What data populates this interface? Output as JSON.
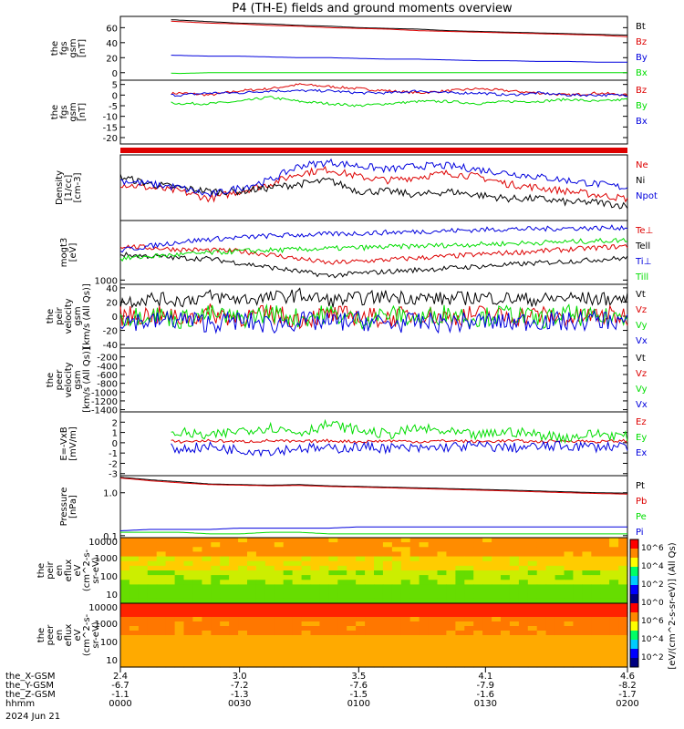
{
  "title": "P4 (TH-E) fields and ground moments overview",
  "colors": {
    "black": "#000000",
    "red": "#dd0000",
    "green": "#00dd00",
    "blue": "#0000dd",
    "axis": "#000000"
  },
  "chart_data": [
    {
      "type": "line",
      "id": "fgs",
      "ylabel": [
        "the",
        "fgs",
        "gsm",
        "[nT]"
      ],
      "ylim": [
        -10,
        75
      ],
      "yticks": [
        "60",
        "40",
        "20",
        "0"
      ],
      "series": [
        {
          "name": "Bt",
          "color": "black",
          "values": [
            74,
            72,
            70,
            68,
            66,
            65,
            63,
            62,
            60,
            59,
            58,
            56,
            55,
            54,
            53,
            52,
            51,
            50
          ]
        },
        {
          "name": "Bz",
          "color": "red",
          "values": [
            72,
            70,
            68,
            66,
            65,
            63,
            62,
            60,
            59,
            58,
            56,
            55,
            54,
            53,
            52,
            51,
            50,
            48
          ]
        },
        {
          "name": "By",
          "color": "blue",
          "values": [
            25,
            24,
            23,
            22,
            22,
            21,
            20,
            20,
            19,
            18,
            18,
            17,
            16,
            16,
            15,
            15,
            14,
            14
          ]
        },
        {
          "name": "Bx",
          "color": "green",
          "values": [
            0,
            0,
            -1,
            0,
            0,
            0,
            0,
            0,
            0,
            0,
            0,
            0,
            0,
            0,
            0,
            0,
            0,
            0
          ]
        }
      ]
    },
    {
      "type": "line",
      "id": "fgs-dsl",
      "ylabel": [
        "the",
        "fgs",
        "gsm",
        "[nT]"
      ],
      "ylim": [
        -23,
        7
      ],
      "yticks": [
        "5",
        "0",
        "-5",
        "-10",
        "-15",
        "-20"
      ],
      "series": [
        {
          "name": "Bz",
          "color": "red",
          "values": [
            -1,
            0,
            1,
            0,
            2,
            3,
            5,
            4,
            3,
            2,
            1,
            2,
            3,
            2,
            1,
            0,
            1,
            0
          ]
        },
        {
          "name": "By",
          "color": "green",
          "values": [
            -2,
            -3,
            -4,
            -4,
            -3,
            -1,
            -3,
            -4,
            -5,
            -4,
            -3,
            -3,
            -4,
            -3,
            -3,
            -2,
            -3,
            -2
          ]
        },
        {
          "name": "Bx",
          "color": "blue",
          "values": [
            -1,
            0,
            0,
            1,
            1,
            2,
            2,
            2,
            1,
            1,
            2,
            1,
            1,
            0,
            1,
            0,
            0,
            0
          ]
        }
      ]
    },
    {
      "type": "line",
      "id": "density",
      "ylabel": [
        "Density",
        "[1/cc]",
        "[cm-3]"
      ],
      "ylim": [
        0.1,
        1
      ],
      "yticks": [],
      "series": [
        {
          "name": "Ne",
          "color": "red",
          "values": [
            0.6,
            0.55,
            0.5,
            0.4,
            0.5,
            0.6,
            0.75,
            0.8,
            0.7,
            0.65,
            0.7,
            0.75,
            0.7,
            0.6,
            0.55,
            0.5,
            0.45,
            0.4
          ]
        },
        {
          "name": "Ni",
          "color": "black",
          "values": [
            0.7,
            0.6,
            0.55,
            0.5,
            0.5,
            0.55,
            0.6,
            0.65,
            0.5,
            0.5,
            0.45,
            0.5,
            0.45,
            0.4,
            0.4,
            0.35,
            0.35,
            0.3
          ]
        },
        {
          "name": "Npot",
          "color": "blue",
          "values": [
            0.65,
            0.6,
            0.55,
            0.45,
            0.55,
            0.65,
            0.85,
            0.9,
            0.85,
            0.8,
            0.85,
            0.85,
            0.8,
            0.75,
            0.7,
            0.65,
            0.6,
            0.55
          ]
        }
      ]
    },
    {
      "type": "line",
      "id": "temp",
      "ylabel": [
        "mogt3",
        "[eV]"
      ],
      "ylim": [
        500,
        8000
      ],
      "yticks": [
        "1000"
      ],
      "series": [
        {
          "name": "Te⊥",
          "color": "red",
          "values": [
            5000,
            4800,
            4600,
            4500,
            4400,
            4000,
            3500,
            3000,
            3200,
            3400,
            3600,
            3800,
            4000,
            4200,
            4400,
            4600,
            4800,
            5000
          ]
        },
        {
          "name": "Tell",
          "color": "black",
          "values": [
            4000,
            3800,
            3600,
            3500,
            3000,
            2500,
            2000,
            1500,
            1800,
            2000,
            2200,
            2400,
            2600,
            2800,
            3000,
            3200,
            3400,
            3600
          ]
        },
        {
          "name": "Ti⊥",
          "color": "blue",
          "values": [
            4500,
            5000,
            5500,
            5800,
            6000,
            6200,
            6300,
            6400,
            6500,
            6600,
            6700,
            6800,
            6900,
            7000,
            7000,
            7100,
            7100,
            7200
          ]
        },
        {
          "name": "Till",
          "color": "green",
          "values": [
            3500,
            3800,
            4000,
            4200,
            4400,
            4500,
            4600,
            4700,
            4800,
            4900,
            5000,
            5100,
            5200,
            5300,
            5400,
            5500,
            5600,
            5700
          ]
        }
      ]
    },
    {
      "type": "line",
      "id": "velocity-peir",
      "ylabel": [
        "the",
        "peir",
        "velocity",
        "gsm",
        "[km/s (All Qs)]"
      ],
      "ylim": [
        -45,
        45
      ],
      "yticks": [
        "40",
        "20",
        "0",
        "-20",
        "-40"
      ],
      "series": [
        {
          "name": "Vt",
          "color": "black",
          "values": [
            20,
            25,
            22,
            28,
            24,
            26,
            30,
            22,
            25,
            28,
            26,
            24,
            27,
            25,
            23,
            26,
            24,
            25
          ]
        },
        {
          "name": "Vz",
          "color": "red",
          "values": [
            0,
            2,
            -3,
            4,
            -2,
            3,
            -4,
            2,
            0,
            -3,
            4,
            -2,
            3,
            -1,
            2,
            -3,
            1,
            0
          ]
        },
        {
          "name": "Vy",
          "color": "green",
          "values": [
            -3,
            4,
            -5,
            3,
            -4,
            5,
            -3,
            4,
            -5,
            3,
            -4,
            5,
            -3,
            4,
            -5,
            3,
            -4,
            2
          ]
        },
        {
          "name": "Vx",
          "color": "blue",
          "values": [
            -5,
            -8,
            -4,
            -10,
            -6,
            -12,
            -7,
            -9,
            -6,
            -11,
            -8,
            -10,
            -7,
            -9,
            -6,
            -8,
            -5,
            -7
          ]
        }
      ]
    },
    {
      "type": "line",
      "id": "velocity-peer",
      "ylabel": [
        "the",
        "peer",
        "velocity",
        "gsm",
        "[km/s (All Qs)]"
      ],
      "ylim": [
        -1450,
        0
      ],
      "yticks": [
        "-200",
        "-400",
        "-600",
        "-800",
        "-1000",
        "-1200",
        "-1400"
      ],
      "series": [
        {
          "name": "Vt",
          "color": "black",
          "values": []
        },
        {
          "name": "Vz",
          "color": "red",
          "values": []
        },
        {
          "name": "Vy",
          "color": "green",
          "values": []
        },
        {
          "name": "Vx",
          "color": "blue",
          "values": []
        }
      ]
    },
    {
      "type": "line",
      "id": "efield",
      "ylabel": [
        "E=-VxB",
        "[mV/m]"
      ],
      "ylim": [
        -3.2,
        3
      ],
      "yticks": [
        "2",
        "1",
        "0",
        "-1",
        "-2",
        "-3"
      ],
      "series": [
        {
          "name": "Ez",
          "color": "red",
          "values": [
            0,
            0.2,
            0.1,
            0.2,
            0.1,
            0.2,
            0.1,
            0.2,
            0.1,
            0.2,
            0.1,
            0.2,
            0.1,
            0.2,
            0.1,
            0.2,
            0.1,
            0.2
          ]
        },
        {
          "name": "Ey",
          "color": "green",
          "values": [
            0.5,
            0.8,
            1,
            0.6,
            1.2,
            1.5,
            1,
            1.8,
            1.2,
            0.8,
            1.4,
            1,
            0.7,
            1.1,
            0.8,
            0.5,
            0.9,
            0.6
          ]
        },
        {
          "name": "Ex",
          "color": "blue",
          "values": [
            -0.3,
            -0.5,
            -0.6,
            -0.4,
            -0.7,
            -0.8,
            -0.5,
            -0.6,
            -0.4,
            -0.5,
            -0.6,
            -0.4,
            -0.3,
            -0.5,
            -0.4,
            -0.3,
            -0.4,
            -0.3
          ]
        }
      ]
    },
    {
      "type": "line",
      "id": "pressure",
      "ylabel": [
        "Pressure",
        "[nPa]"
      ],
      "ylim": [
        0.09,
        2.5
      ],
      "log": true,
      "yticks": [
        "1.0",
        "0.1"
      ],
      "series": [
        {
          "name": "Pt",
          "color": "black",
          "values": [
            2.3,
            2.0,
            1.8,
            1.6,
            1.55,
            1.5,
            1.55,
            1.45,
            1.4,
            1.35,
            1.3,
            1.25,
            1.2,
            1.15,
            1.1,
            1.05,
            1.0,
            0.98
          ]
        },
        {
          "name": "Pb",
          "color": "red",
          "values": [
            2.2,
            1.9,
            1.7,
            1.55,
            1.5,
            1.45,
            1.48,
            1.4,
            1.35,
            1.3,
            1.25,
            1.2,
            1.15,
            1.1,
            1.05,
            1.0,
            0.96,
            0.93
          ]
        },
        {
          "name": "Pe",
          "color": "green",
          "values": [
            0.12,
            0.12,
            0.12,
            0.11,
            0.11,
            0.12,
            0.12,
            0.11,
            0.11,
            0.11,
            0.11,
            0.11,
            0.11,
            0.11,
            0.11,
            0.11,
            0.11,
            0.11
          ]
        },
        {
          "name": "Pi",
          "color": "blue",
          "values": [
            0.13,
            0.14,
            0.14,
            0.14,
            0.15,
            0.15,
            0.15,
            0.15,
            0.16,
            0.16,
            0.16,
            0.16,
            0.16,
            0.16,
            0.16,
            0.16,
            0.16,
            0.16
          ]
        }
      ]
    },
    {
      "type": "heatmap",
      "id": "peir-spec",
      "ylabel": [
        "the",
        "peir",
        "en",
        "eflux",
        "eV",
        "(cm^2-s-",
        "sr-eV)"
      ],
      "yticks": [
        "10000",
        "1000",
        "100",
        "10"
      ]
    },
    {
      "type": "heatmap",
      "id": "peer-spec",
      "ylabel": [
        "the",
        "peer",
        "en",
        "eflux",
        "eV",
        "(cm^2-s-",
        "sr-eV)"
      ],
      "yticks": [
        "10000",
        "1000",
        "100",
        "10"
      ]
    }
  ],
  "colorbar": {
    "label": "[eV/(cm^2-s-sr-eV)] (All Qs)",
    "ticks": [
      "10^6",
      "10^4",
      "10^2",
      "10^0",
      "10^6",
      "10^4",
      "10^2"
    ]
  },
  "xaxis": {
    "rows": [
      {
        "label": "the_X-GSM",
        "values": [
          "2.4",
          "3.0",
          "3.5",
          "4.1",
          "4.6"
        ]
      },
      {
        "label": "the_Y-GSM",
        "values": [
          "-6.7",
          "-7.2",
          "-7.6",
          "-7.9",
          "-8.2"
        ]
      },
      {
        "label": "the_Z-GSM",
        "values": [
          "-1.1",
          "-1.3",
          "-1.5",
          "-1.6",
          "-1.7"
        ]
      },
      {
        "label": "hhmm",
        "values": [
          "0000",
          "0030",
          "0100",
          "0130",
          "0200"
        ]
      }
    ],
    "date": "2024 Jun 21"
  }
}
